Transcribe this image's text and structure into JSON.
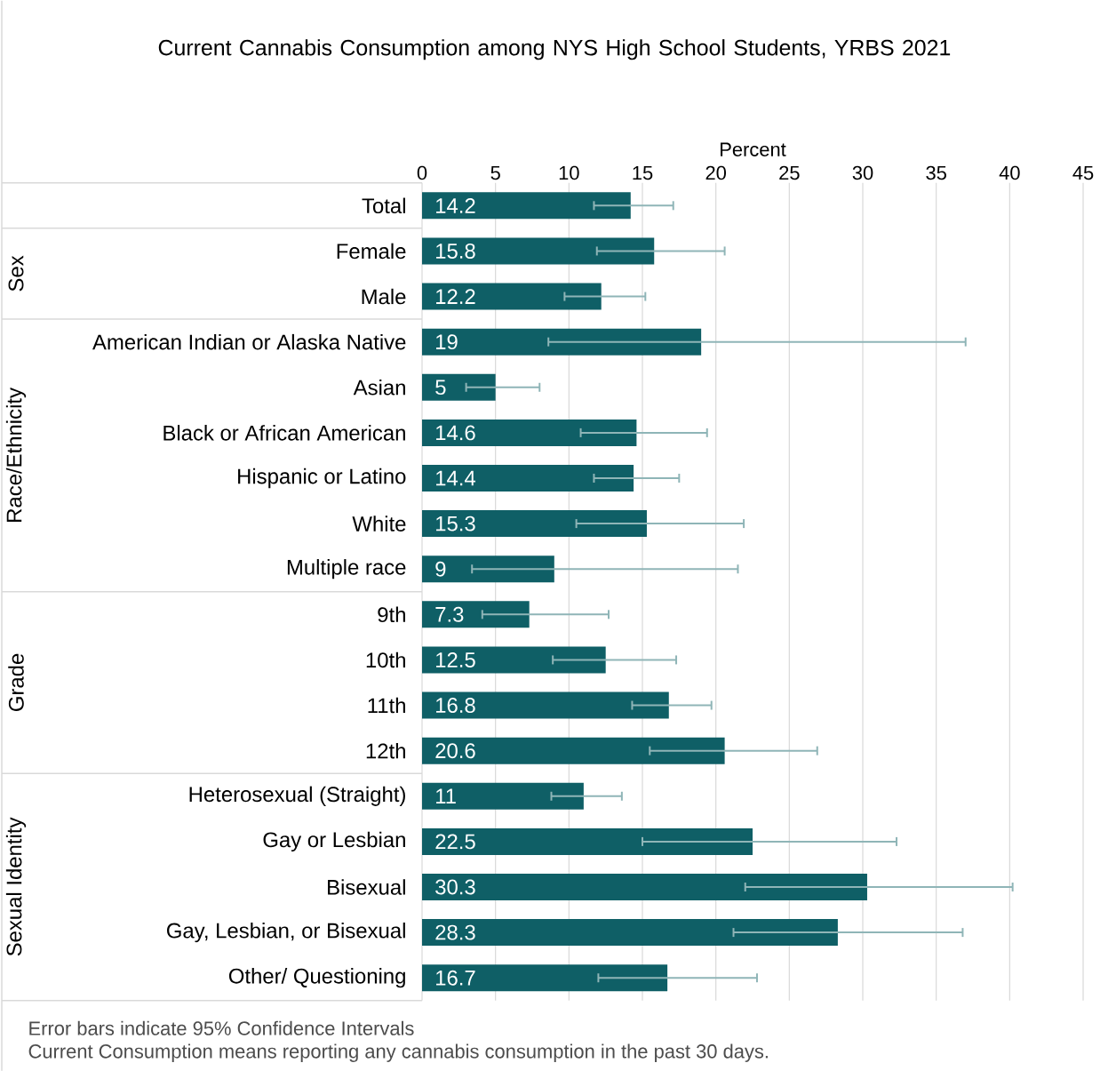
{
  "chart_data": {
    "type": "bar",
    "orientation": "horizontal",
    "title": "Current Cannabis Consumption among NYS High School Students, YRBS 2021",
    "xlabel": "Percent",
    "categories": [
      "Total",
      "Female",
      "Male",
      "American Indian or Alaska Native",
      "Asian",
      "Black or African American",
      "Hispanic or Latino",
      "White",
      "Multiple race",
      "9th",
      "10th",
      "11th",
      "12th",
      "Heterosexual (Straight)",
      "Gay or Lesbian",
      "Bisexual",
      "Gay, Lesbian, or Bisexual",
      "Other/ Questioning"
    ],
    "values": [
      14.2,
      15.8,
      12.2,
      19,
      5,
      14.6,
      14.4,
      15.3,
      9,
      7.3,
      12.5,
      16.8,
      20.6,
      11,
      22.5,
      30.3,
      28.3,
      16.7
    ],
    "errors": [
      [
        11.7,
        17.1
      ],
      [
        11.9,
        20.6
      ],
      [
        9.7,
        15.2
      ],
      [
        8.6,
        37.0
      ],
      [
        3.0,
        8.0
      ],
      [
        10.8,
        19.4
      ],
      [
        11.7,
        17.5
      ],
      [
        10.5,
        21.9
      ],
      [
        3.4,
        21.5
      ],
      [
        4.1,
        12.7
      ],
      [
        8.9,
        17.3
      ],
      [
        14.3,
        19.7
      ],
      [
        15.5,
        26.9
      ],
      [
        8.8,
        13.6
      ],
      [
        15.0,
        32.3
      ],
      [
        22.0,
        40.2
      ],
      [
        21.2,
        36.8
      ],
      [
        12.0,
        22.8
      ]
    ],
    "color": "#0f5f66",
    "data_labels": true,
    "grid": "x",
    "xlim": [
      0,
      45
    ],
    "xticks": [
      0,
      5,
      10,
      15,
      20,
      25,
      30,
      35,
      40,
      45
    ],
    "annotations": [
      "Sex",
      "Race/Ethnicity",
      "Grade",
      "Sexual Identity",
      "Error bars indicate 95% Confidence Intervals",
      "Current Consumption means reporting any cannabis consumption in the past 30 days."
    ]
  }
}
